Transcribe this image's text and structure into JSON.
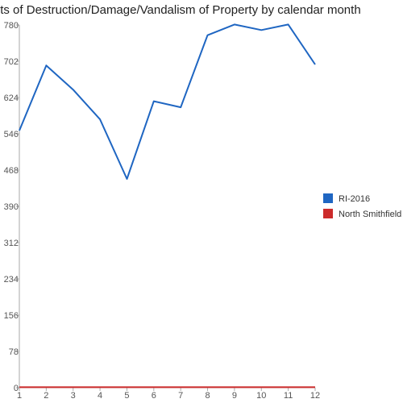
{
  "chart_data": {
    "type": "line",
    "title": "Counts of Destruction/Damage/Vandalism of Property by calendar month",
    "xlabel": "",
    "ylabel": "",
    "x": [
      1,
      2,
      3,
      4,
      5,
      6,
      7,
      8,
      9,
      10,
      11,
      12
    ],
    "x_tick_labels": [
      "1",
      "2",
      "3",
      "4",
      "5",
      "6",
      "7",
      "8",
      "9",
      "10",
      "11",
      "12"
    ],
    "ylim": [
      0,
      780
    ],
    "y_ticks": [
      0,
      78,
      156,
      234,
      312,
      390,
      468,
      546,
      624,
      702,
      780
    ],
    "y_tick_labels": [
      "0",
      "78",
      "156",
      "234",
      "312",
      "390",
      "468",
      "546",
      "624",
      "702",
      "780"
    ],
    "grid": false,
    "legend_position": "right",
    "series": [
      {
        "name": "RI-2016",
        "color": "#1f66c2",
        "values": [
          553,
          693,
          641,
          577,
          449,
          616,
          603,
          758,
          781,
          769,
          781,
          695
        ]
      },
      {
        "name": "North Smithfield",
        "color": "#cc2b2b",
        "values": [
          1,
          1,
          1,
          1,
          1,
          1,
          1,
          1,
          1,
          1,
          1,
          1
        ]
      }
    ]
  }
}
